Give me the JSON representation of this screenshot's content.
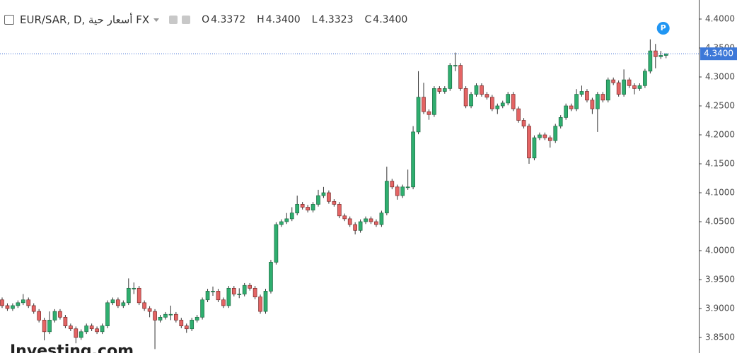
{
  "chart_data": {
    "type": "candlestick",
    "title": "EUR/SAR, D, أسعار حية FX",
    "ohlc_legend": [
      {
        "label": "O",
        "value": "4.3372"
      },
      {
        "label": "H",
        "value": "4.3400"
      },
      {
        "label": "L",
        "value": "4.3323"
      },
      {
        "label": "C",
        "value": "4.3400"
      }
    ],
    "badge": "P",
    "watermark": "Investing.com",
    "up_color": "#2fae6f",
    "down_color": "#e46464",
    "ylim": [
      3.8232,
      4.4329
    ],
    "yticks": [
      {
        "value": 3.85,
        "label": "3.8500"
      },
      {
        "value": 3.9,
        "label": "3.9000"
      },
      {
        "value": 3.95,
        "label": "3.9500"
      },
      {
        "value": 4.0,
        "label": "4.0000"
      },
      {
        "value": 4.05,
        "label": "4.0500"
      },
      {
        "value": 4.1,
        "label": "4.1000"
      },
      {
        "value": 4.15,
        "label": "4.1500"
      },
      {
        "value": 4.2,
        "label": "4.2000"
      },
      {
        "value": 4.25,
        "label": "4.2500"
      },
      {
        "value": 4.3,
        "label": "4.3000"
      },
      {
        "value": 4.35,
        "label": "4.3500"
      },
      {
        "value": 4.4,
        "label": "4.4000"
      }
    ],
    "last_price": {
      "value": 4.34,
      "label": "4.3400"
    },
    "grid": false,
    "open": [
      3.915,
      3.905,
      3.9,
      3.905,
      3.91,
      3.915,
      3.905,
      3.895,
      3.88,
      3.86,
      3.88,
      3.895,
      3.885,
      3.87,
      3.865,
      3.85,
      3.86,
      3.87,
      3.865,
      3.86,
      3.87,
      3.91,
      3.915,
      3.905,
      3.91,
      3.935,
      3.935,
      3.91,
      3.9,
      3.895,
      3.88,
      3.885,
      3.89,
      3.89,
      3.88,
      3.87,
      3.865,
      3.88,
      3.885,
      3.915,
      3.93,
      3.93,
      3.915,
      3.905,
      3.935,
      3.925,
      3.925,
      3.94,
      3.935,
      3.92,
      3.895,
      3.93,
      3.98,
      4.045,
      4.05,
      4.055,
      4.065,
      4.08,
      4.075,
      4.07,
      4.08,
      4.095,
      4.1,
      4.085,
      4.08,
      4.06,
      4.055,
      4.045,
      4.035,
      4.05,
      4.055,
      4.05,
      4.045,
      4.065,
      4.12,
      4.11,
      4.095,
      4.11,
      4.11,
      4.205,
      4.265,
      4.24,
      4.235,
      4.28,
      4.275,
      4.28,
      4.32,
      4.32,
      4.28,
      4.25,
      4.27,
      4.285,
      4.27,
      4.265,
      4.245,
      4.25,
      4.255,
      4.27,
      4.245,
      4.225,
      4.215,
      4.16,
      4.195,
      4.2,
      4.195,
      4.19,
      4.215,
      4.23,
      4.25,
      4.245,
      4.27,
      4.275,
      4.26,
      4.245,
      4.27,
      4.26,
      4.295,
      4.29,
      4.27,
      4.295,
      4.285,
      4.28,
      4.285,
      4.31,
      4.345,
      4.335,
      4.3372
    ],
    "high": [
      3.919,
      3.909,
      3.909,
      3.914,
      3.925,
      3.919,
      3.909,
      3.899,
      3.884,
      3.895,
      3.899,
      3.899,
      3.889,
      3.874,
      3.869,
      3.864,
      3.874,
      3.874,
      3.869,
      3.874,
      3.914,
      3.919,
      3.919,
      3.914,
      3.952,
      3.945,
      3.939,
      3.914,
      3.904,
      3.899,
      3.889,
      3.894,
      3.905,
      3.894,
      3.884,
      3.874,
      3.884,
      3.889,
      3.919,
      3.934,
      3.938,
      3.934,
      3.919,
      3.939,
      3.939,
      3.935,
      3.944,
      3.944,
      3.939,
      3.924,
      3.934,
      3.984,
      4.049,
      4.054,
      4.065,
      4.075,
      4.095,
      4.084,
      4.079,
      4.084,
      4.105,
      4.11,
      4.104,
      4.089,
      4.084,
      4.064,
      4.059,
      4.049,
      4.054,
      4.059,
      4.059,
      4.054,
      4.069,
      4.145,
      4.124,
      4.114,
      4.114,
      4.14,
      4.215,
      4.31,
      4.29,
      4.244,
      4.284,
      4.284,
      4.284,
      4.324,
      4.342,
      4.324,
      4.284,
      4.274,
      4.289,
      4.289,
      4.274,
      4.269,
      4.254,
      4.259,
      4.274,
      4.274,
      4.249,
      4.229,
      4.219,
      4.199,
      4.204,
      4.204,
      4.199,
      4.219,
      4.234,
      4.254,
      4.254,
      4.279,
      4.285,
      4.279,
      4.264,
      4.274,
      4.274,
      4.299,
      4.299,
      4.294,
      4.313,
      4.299,
      4.289,
      4.289,
      4.314,
      4.365,
      4.357,
      4.345,
      4.34
    ],
    "low": [
      3.901,
      3.896,
      3.896,
      3.901,
      3.906,
      3.901,
      3.891,
      3.876,
      3.845,
      3.856,
      3.876,
      3.881,
      3.866,
      3.861,
      3.84,
      3.846,
      3.856,
      3.861,
      3.856,
      3.856,
      3.866,
      3.906,
      3.901,
      3.901,
      3.906,
      3.925,
      3.906,
      3.896,
      3.885,
      3.83,
      3.876,
      3.881,
      3.88,
      3.876,
      3.866,
      3.858,
      3.861,
      3.876,
      3.881,
      3.911,
      3.922,
      3.911,
      3.901,
      3.901,
      3.921,
      3.918,
      3.921,
      3.931,
      3.916,
      3.891,
      3.891,
      3.926,
      3.976,
      4.041,
      4.046,
      4.051,
      4.061,
      4.071,
      4.066,
      4.066,
      4.076,
      4.091,
      4.081,
      4.076,
      4.056,
      4.051,
      4.041,
      4.028,
      4.031,
      4.046,
      4.046,
      4.041,
      4.041,
      4.061,
      4.106,
      4.088,
      4.091,
      4.105,
      4.106,
      4.201,
      4.236,
      4.226,
      4.231,
      4.271,
      4.271,
      4.276,
      4.31,
      4.276,
      4.246,
      4.246,
      4.266,
      4.266,
      4.261,
      4.241,
      4.236,
      4.246,
      4.251,
      4.241,
      4.221,
      4.211,
      4.15,
      4.156,
      4.191,
      4.191,
      4.178,
      4.186,
      4.211,
      4.226,
      4.241,
      4.241,
      4.266,
      4.256,
      4.236,
      4.205,
      4.256,
      4.256,
      4.286,
      4.266,
      4.266,
      4.281,
      4.27,
      4.276,
      4.281,
      4.306,
      4.315,
      4.331,
      4.3323
    ],
    "close": [
      3.905,
      3.9,
      3.905,
      3.91,
      3.915,
      3.905,
      3.895,
      3.88,
      3.86,
      3.88,
      3.895,
      3.885,
      3.87,
      3.865,
      3.85,
      3.86,
      3.87,
      3.865,
      3.86,
      3.87,
      3.91,
      3.915,
      3.905,
      3.91,
      3.935,
      3.935,
      3.91,
      3.9,
      3.895,
      3.88,
      3.885,
      3.89,
      3.89,
      3.88,
      3.87,
      3.865,
      3.88,
      3.885,
      3.915,
      3.93,
      3.93,
      3.915,
      3.905,
      3.935,
      3.925,
      3.925,
      3.94,
      3.935,
      3.92,
      3.895,
      3.93,
      3.98,
      4.045,
      4.05,
      4.055,
      4.065,
      4.08,
      4.075,
      4.07,
      4.08,
      4.095,
      4.1,
      4.085,
      4.08,
      4.06,
      4.055,
      4.045,
      4.035,
      4.05,
      4.055,
      4.05,
      4.045,
      4.065,
      4.12,
      4.11,
      4.095,
      4.11,
      4.11,
      4.205,
      4.265,
      4.24,
      4.235,
      4.28,
      4.275,
      4.28,
      4.32,
      4.32,
      4.28,
      4.25,
      4.27,
      4.285,
      4.27,
      4.265,
      4.245,
      4.25,
      4.255,
      4.27,
      4.245,
      4.225,
      4.215,
      4.16,
      4.195,
      4.2,
      4.195,
      4.19,
      4.215,
      4.23,
      4.25,
      4.245,
      4.27,
      4.275,
      4.26,
      4.245,
      4.27,
      4.26,
      4.295,
      4.29,
      4.27,
      4.295,
      4.285,
      4.28,
      4.285,
      4.31,
      4.345,
      4.335,
      4.3372,
      4.34
    ]
  }
}
